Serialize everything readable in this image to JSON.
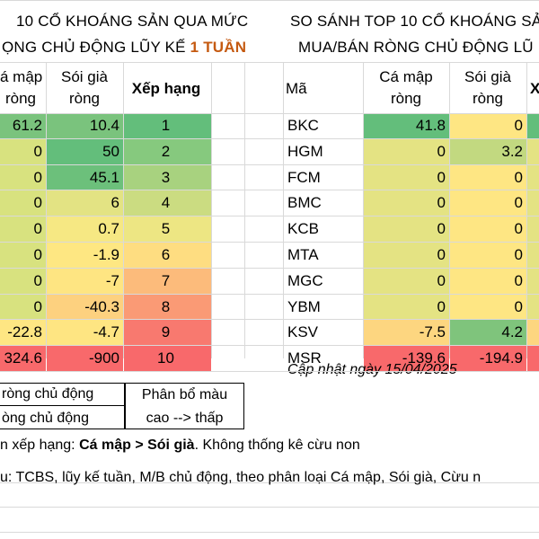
{
  "left_table": {
    "title_line1": "10 CỔ KHOÁNG SẢN QUA MỨC",
    "title_line2_prefix": "ỌNG CHỦ ĐỘNG LŨY KẾ ",
    "title_line2_highlight": "1 TUẦN",
    "highlight_color": "#c55a11",
    "headers": {
      "col1_line1": "á mập",
      "col1_line2": "ròng",
      "col2_line1": "Sói già",
      "col2_line2": "ròng",
      "col3": "Xếp hạng"
    },
    "rows": [
      {
        "ca_map": "61.2",
        "soi_gia": "10.4",
        "rank": "1",
        "ca_color": "#7ac37d",
        "soi_color": "#7ac37d",
        "rank_color": "#63be7b"
      },
      {
        "ca_map": "0",
        "soi_gia": "50",
        "rank": "2",
        "ca_color": "#d8e27f",
        "soi_color": "#63be7b",
        "rank_color": "#86c97e"
      },
      {
        "ca_map": "0",
        "soi_gia": "45.1",
        "rank": "3",
        "ca_color": "#d8e27f",
        "soi_color": "#6cc07b",
        "rank_color": "#a8d27f"
      },
      {
        "ca_map": "0",
        "soi_gia": "6",
        "rank": "4",
        "ca_color": "#d8e27f",
        "soi_color": "#e3e383",
        "rank_color": "#cbdc81"
      },
      {
        "ca_map": "0",
        "soi_gia": "0.7",
        "rank": "5",
        "ca_color": "#d8e27f",
        "soi_color": "#f6e883",
        "rank_color": "#ede683"
      },
      {
        "ca_map": "0",
        "soi_gia": "-1.9",
        "rank": "6",
        "ca_color": "#d8e27f",
        "soi_color": "#fee782",
        "rank_color": "#fedd81"
      },
      {
        "ca_map": "0",
        "soi_gia": "-7",
        "rank": "7",
        "ca_color": "#d8e27f",
        "soi_color": "#fee582",
        "rank_color": "#fcbb7b"
      },
      {
        "ca_map": "0",
        "soi_gia": "-40.3",
        "rank": "8",
        "ca_color": "#d8e27f",
        "soi_color": "#fdd17f",
        "rank_color": "#fa9a75"
      },
      {
        "ca_map": "-22.8",
        "soi_gia": "-4.7",
        "rank": "9",
        "ca_color": "#fee683",
        "soi_color": "#fee582",
        "rank_color": "#f8796f"
      },
      {
        "ca_map": "324.6",
        "soi_gia": "-900",
        "rank": "10",
        "ca_color": "#f8696b",
        "soi_color": "#f8696b",
        "rank_color": "#f8696b"
      }
    ]
  },
  "right_table": {
    "title_line1": "SO SÁNH TOP 10 CỔ KHOÁNG SẢ",
    "title_line2": "MUA/BÁN RÒNG CHỦ ĐỘNG LŨ",
    "headers": {
      "col0": "Mã",
      "col1_line1": "Cá mập",
      "col1_line2": "ròng",
      "col2_line1": "Sói già",
      "col2_line2": "ròng",
      "col3": "X"
    },
    "rows": [
      {
        "ma": "BKC",
        "ca_map": "41.8",
        "soi_gia": "0",
        "ca_color": "#63be7b",
        "soi_color": "#fee683"
      },
      {
        "ma": "HGM",
        "ca_map": "0",
        "soi_gia": "3.2",
        "ca_color": "#e4e383",
        "soi_color": "#c2d980"
      },
      {
        "ma": "FCM",
        "ca_map": "0",
        "soi_gia": "0",
        "ca_color": "#e4e383",
        "soi_color": "#fee683"
      },
      {
        "ma": "BMC",
        "ca_map": "0",
        "soi_gia": "0",
        "ca_color": "#e4e383",
        "soi_color": "#fee683"
      },
      {
        "ma": "KCB",
        "ca_map": "0",
        "soi_gia": "0",
        "ca_color": "#e4e383",
        "soi_color": "#fee683"
      },
      {
        "ma": "MTA",
        "ca_map": "0",
        "soi_gia": "0",
        "ca_color": "#e4e383",
        "soi_color": "#fee683"
      },
      {
        "ma": "MGC",
        "ca_map": "0",
        "soi_gia": "0",
        "ca_color": "#e4e383",
        "soi_color": "#fee683"
      },
      {
        "ma": "YBM",
        "ca_map": "0",
        "soi_gia": "0",
        "ca_color": "#e4e383",
        "soi_color": "#fee683"
      },
      {
        "ma": "KSV",
        "ca_map": "-7.5",
        "soi_gia": "4.2",
        "ca_color": "#fdd680",
        "soi_color": "#7fc47c"
      },
      {
        "ma": "MSR",
        "ca_map": "-139.6",
        "soi_gia": "-194.9",
        "ca_color": "#f8696b",
        "soi_color": "#f8696b"
      }
    ],
    "update_note": "Cập nhật ngày 15/04/2025"
  },
  "legend": {
    "item1": "ròng chủ động",
    "item2": "òng chủ động",
    "color_label_line1": "Phân bổ màu",
    "color_label_line2": "cao --> thấp"
  },
  "notes": {
    "line1_prefix": "n xếp hạng: ",
    "line1_bold": "Cá mập > Sói già",
    "line1_suffix": ". Không thống kê cừu non",
    "line2": "u: TCBS, lũy kế tuần, M/B chủ động, theo phân loại Cá mập, Sói già, Cừu n"
  }
}
